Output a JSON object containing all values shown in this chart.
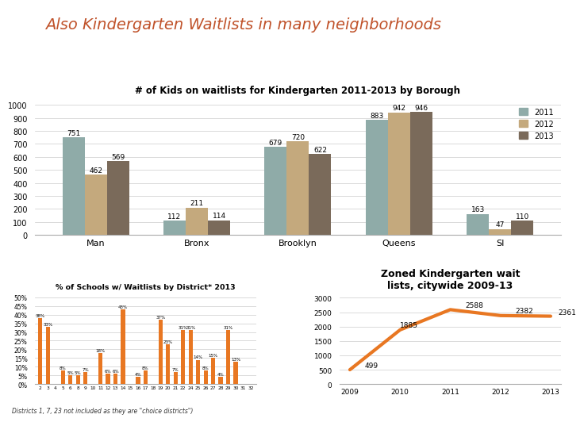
{
  "title": "Also Kindergarten Waitlists in many neighborhoods",
  "title_color": "#c0522a",
  "title_fontsize": 14,
  "bar_title": "# of Kids on waitlists for Kindergarten 2011-2013 by Borough",
  "boroughs": [
    "Man",
    "Bronx",
    "Brooklyn",
    "Queens",
    "SI"
  ],
  "bar_2011": [
    751,
    112,
    679,
    883,
    163
  ],
  "bar_2012": [
    462,
    211,
    720,
    942,
    47
  ],
  "bar_2013": [
    569,
    114,
    622,
    946,
    110
  ],
  "color_2011": "#8faba8",
  "color_2012": "#c4a97d",
  "color_2013": "#7a6a5a",
  "dist_title": "% of Schools w/ Waitlists by District* 2013",
  "dist_labels": [
    "2",
    "3",
    "4",
    "5",
    "6",
    "8",
    "9",
    "10",
    "11",
    "12",
    "13",
    "14",
    "15",
    "16",
    "17",
    "18",
    "19",
    "20",
    "21",
    "22",
    "24",
    "25",
    "26",
    "27",
    "28",
    "29",
    "30",
    "31",
    "32"
  ],
  "dist_values": [
    38,
    33,
    0,
    8,
    5,
    5,
    7,
    0,
    18,
    6,
    6,
    43,
    0,
    4,
    8,
    0,
    37,
    23,
    7,
    31,
    31,
    14,
    8,
    15,
    4,
    31,
    13,
    0,
    0
  ],
  "dist_color": "#e87722",
  "dist_footnote": "Districts 1, 7, 23 not included as they are \"choice districts\")",
  "line_title": "Zoned Kindergarten wait\nlists, citywide 2009-13",
  "line_years": [
    2009,
    2010,
    2011,
    2012,
    2013
  ],
  "line_values": [
    499,
    1885,
    2588,
    2382,
    2361
  ],
  "line_color": "#e87722",
  "line_width": 3
}
